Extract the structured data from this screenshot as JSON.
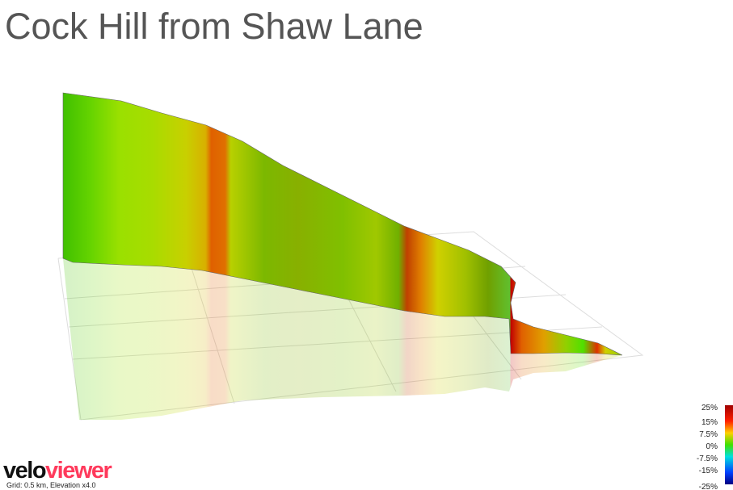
{
  "header": {
    "title": "Cock Hill from Shaw Lane"
  },
  "legend": {
    "labels": [
      "25%",
      "15%",
      "7.5%",
      "0%",
      "-7.5%",
      "-15%",
      "-25%"
    ]
  },
  "logo": {
    "first": "velo",
    "second": "viewer"
  },
  "footer": {
    "note": "Grid: 0.5 km, Elevation x4.0"
  }
}
